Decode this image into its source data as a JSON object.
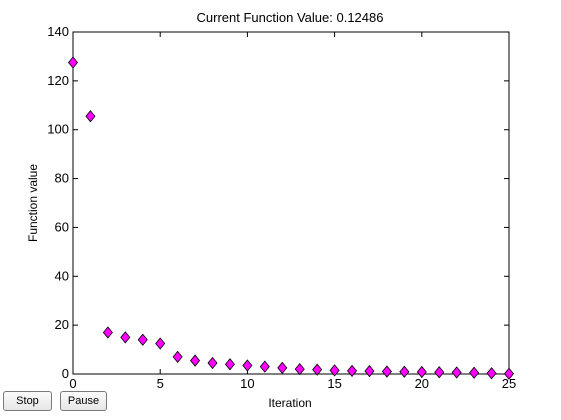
{
  "buttons": {
    "stop_label": "Stop",
    "pause_label": "Pause"
  },
  "chart_data": {
    "type": "scatter",
    "title": "Current Function Value: 0.12486",
    "xlabel": "Iteration",
    "ylabel": "Function value",
    "xlim": [
      0,
      25
    ],
    "ylim": [
      0,
      140
    ],
    "xticks": [
      0,
      5,
      10,
      15,
      20,
      25
    ],
    "yticks": [
      0,
      20,
      40,
      60,
      80,
      100,
      120,
      140
    ],
    "grid": false,
    "marker": "diamond",
    "marker_color": "#ff00ff",
    "series": [
      {
        "x": [
          0,
          1,
          2,
          3,
          4,
          5,
          6,
          7,
          8,
          9,
          10,
          11,
          12,
          13,
          14,
          15,
          16,
          17,
          18,
          19,
          20,
          21,
          22,
          23,
          24,
          25
        ],
        "y": [
          127.5,
          105.5,
          17,
          15,
          14,
          12.5,
          7,
          5.5,
          4.5,
          4,
          3.5,
          3,
          2.5,
          2,
          1.8,
          1.5,
          1.3,
          1.2,
          1,
          0.9,
          0.8,
          0.7,
          0.6,
          0.5,
          0.3,
          0.12486
        ]
      }
    ]
  }
}
